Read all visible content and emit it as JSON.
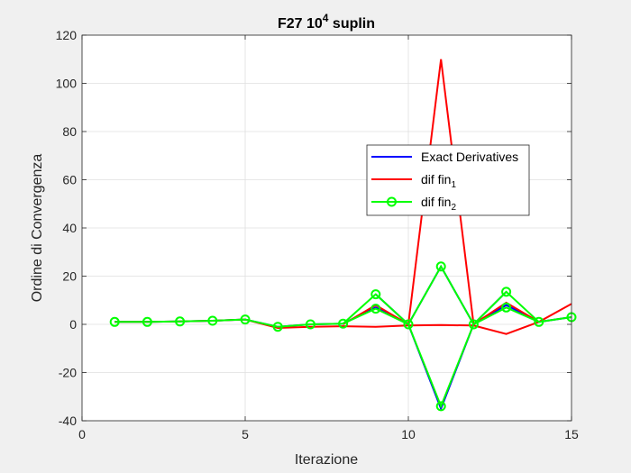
{
  "chart_data": {
    "type": "line",
    "title": {
      "main": "F27 10",
      "sup": "4",
      "tail": " suplin"
    },
    "xlabel": "Iterazione",
    "ylabel": "Ordine di Convergenza",
    "xlim": [
      0,
      15
    ],
    "ylim": [
      -40,
      120
    ],
    "xticks": [
      "0",
      "5",
      "10",
      "15"
    ],
    "yticks": [
      "-40",
      "-20",
      "0",
      "20",
      "40",
      "60",
      "80",
      "100",
      "120"
    ],
    "grid": true,
    "legend_position": "inside, center-right",
    "legend": [
      {
        "base": "Exact Derivatives",
        "sub": "",
        "color": "#0000ff",
        "marker": "none"
      },
      {
        "base": "dif fin",
        "sub": "1",
        "color": "#ff0000",
        "marker": "none"
      },
      {
        "base": "dif fin",
        "sub": "2",
        "color": "#00ff00",
        "marker": "circle"
      }
    ],
    "series": [
      {
        "name": "Exact Derivatives",
        "color": "#0000ff",
        "marker": "none",
        "lines": [
          {
            "x": [
              1,
              2,
              3,
              4,
              5,
              6,
              7,
              8,
              9,
              10,
              11,
              12,
              13,
              14,
              15
            ],
            "y": [
              1,
              1,
              1.2,
              1.5,
              2,
              -1,
              0,
              0.3,
              7,
              0,
              -35,
              0,
              8,
              1,
              3
            ]
          },
          {
            "x": [
              9,
              10,
              11,
              12,
              13
            ],
            "y": [
              12.5,
              0,
              24,
              0,
              13.5
            ]
          }
        ]
      },
      {
        "name": "dif fin1",
        "color": "#ff0000",
        "marker": "none",
        "lines": [
          {
            "x": [
              1,
              2,
              3,
              4,
              5,
              6,
              7,
              8,
              9,
              10,
              11,
              12,
              13,
              14,
              15
            ],
            "y": [
              1,
              1,
              1.2,
              1.5,
              2,
              -1.5,
              -1,
              -0.8,
              -1,
              -0.5,
              -0.3,
              -0.5,
              -4,
              1,
              8.5
            ]
          },
          {
            "x": [
              8,
              9,
              10,
              11,
              12,
              13,
              14
            ],
            "y": [
              0,
              8,
              0,
              110,
              0,
              9,
              1
            ]
          }
        ]
      },
      {
        "name": "dif fin2",
        "color": "#00ff00",
        "marker": "circle",
        "lines": [
          {
            "x": [
              1,
              2,
              3,
              4,
              5,
              6,
              7,
              8,
              9,
              10,
              11,
              12,
              13,
              14,
              15
            ],
            "y": [
              1,
              1,
              1.2,
              1.5,
              2,
              -1,
              0,
              0.3,
              6.5,
              0,
              -34,
              0,
              7,
              1,
              3
            ]
          },
          {
            "x": [
              8,
              9,
              10,
              11,
              12,
              13,
              14
            ],
            "y": [
              0.3,
              12.5,
              0,
              24,
              0,
              13.5,
              1
            ]
          }
        ],
        "markers_x": [
          1,
          2,
          3,
          4,
          5,
          6,
          7,
          8,
          9,
          9,
          10,
          11,
          11,
          12,
          13,
          13,
          14,
          15
        ],
        "markers_y": [
          1,
          1,
          1.2,
          1.5,
          2,
          -1,
          0,
          0.3,
          12.5,
          6.5,
          0,
          24,
          -34,
          0,
          13.5,
          7,
          1,
          3
        ]
      }
    ]
  }
}
